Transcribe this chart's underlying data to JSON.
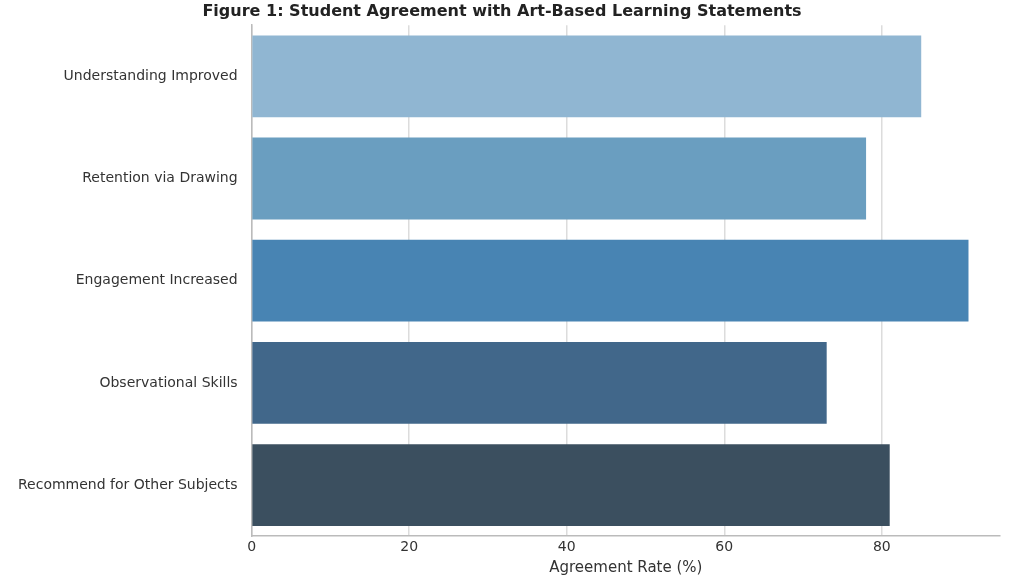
{
  "chart_data": {
    "type": "bar",
    "orientation": "horizontal",
    "title": "Figure 1: Student Agreement with Art-Based Learning Statements",
    "xlabel": "Agreement Rate (%)",
    "categories": [
      "Understanding Improved",
      "Retention via Drawing",
      "Engagement Increased",
      "Observational Skills",
      "Recommend for Other Subjects"
    ],
    "values": [
      85,
      78,
      91,
      73,
      81
    ],
    "colors": [
      "#90b6d2",
      "#6a9ec0",
      "#4884b3",
      "#41678a",
      "#3b4f5f"
    ],
    "xlim": [
      0,
      95
    ],
    "xticks": [
      0,
      20,
      40,
      60,
      80
    ],
    "grid": "x",
    "legend": false
  }
}
